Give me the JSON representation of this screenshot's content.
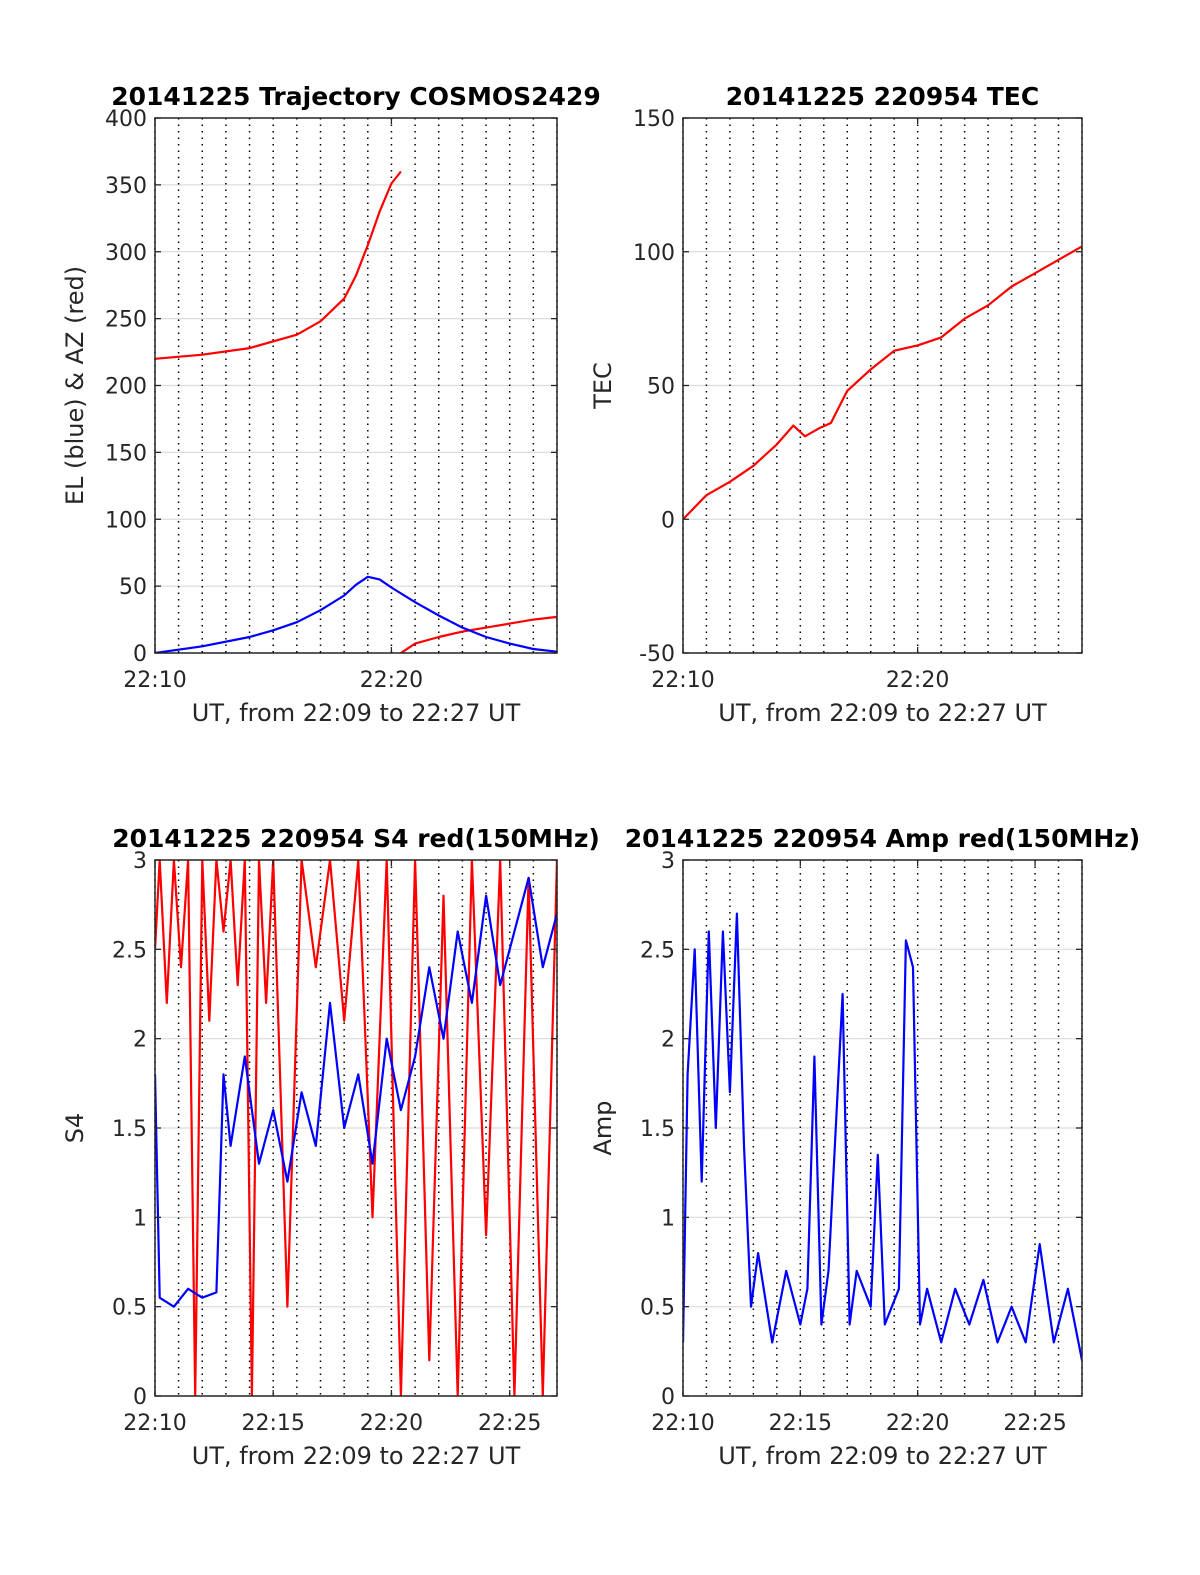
{
  "chart_data": [
    {
      "id": "trajectory",
      "type": "line",
      "title": "20141225 Trajectory COSMOS2429",
      "xlabel": "UT, from 22:09 to 22:27 UT",
      "ylabel": "EL (blue) & AZ (red)",
      "xlim": [
        22.1667,
        22.45
      ],
      "ylim": [
        0,
        400
      ],
      "yticks": [
        0,
        50,
        100,
        150,
        200,
        250,
        300,
        350,
        400
      ],
      "xticks": [
        {
          "value": 22.1667,
          "label": "22:10"
        },
        {
          "value": 22.3333,
          "label": "22:20"
        }
      ],
      "vgrid_minutes_from": 10,
      "vgrid_minutes_to": 27,
      "grid": true,
      "series": [
        {
          "color": "#ff0000",
          "segments": [
            [
              [
                22.1667,
                220
              ],
              [
                22.2,
                223
              ],
              [
                22.2333,
                228
              ],
              [
                22.2667,
                238
              ],
              [
                22.2833,
                248
              ],
              [
                22.3,
                265
              ],
              [
                22.3083,
                282
              ],
              [
                22.3167,
                305
              ],
              [
                22.325,
                330
              ],
              [
                22.3333,
                351
              ],
              [
                22.34,
                360
              ]
            ],
            [
              [
                22.34,
                0
              ],
              [
                22.35,
                7
              ],
              [
                22.3667,
                12
              ],
              [
                22.3833,
                16
              ],
              [
                22.4,
                19
              ],
              [
                22.4167,
                22
              ],
              [
                22.4333,
                25
              ],
              [
                22.45,
                27
              ]
            ]
          ]
        },
        {
          "color": "#0000ff",
          "segments": [
            [
              [
                22.1667,
                0
              ],
              [
                22.2,
                5
              ],
              [
                22.2333,
                12
              ],
              [
                22.25,
                17
              ],
              [
                22.2667,
                23
              ],
              [
                22.2833,
                32
              ],
              [
                22.3,
                43
              ],
              [
                22.3083,
                51
              ],
              [
                22.3167,
                57
              ],
              [
                22.325,
                55
              ],
              [
                22.3333,
                49
              ],
              [
                22.35,
                38
              ],
              [
                22.3667,
                28
              ],
              [
                22.3833,
                19
              ],
              [
                22.4,
                12
              ],
              [
                22.4167,
                7
              ],
              [
                22.4333,
                3
              ],
              [
                22.45,
                1
              ]
            ]
          ]
        }
      ]
    },
    {
      "id": "tec",
      "type": "line",
      "title": "20141225 220954 TEC",
      "xlabel": "UT, from 22:09 to 22:27 UT",
      "ylabel": "TEC",
      "xlim": [
        22.1667,
        22.45
      ],
      "ylim": [
        -50,
        150
      ],
      "yticks": [
        -50,
        0,
        50,
        100,
        150
      ],
      "xticks": [
        {
          "value": 22.1667,
          "label": "22:10"
        },
        {
          "value": 22.3333,
          "label": "22:20"
        }
      ],
      "vgrid_minutes_from": 10,
      "vgrid_minutes_to": 27,
      "grid": true,
      "series": [
        {
          "color": "#ff0000",
          "segments": [
            [
              [
                22.1667,
                0
              ],
              [
                22.1833,
                9
              ],
              [
                22.2,
                14
              ],
              [
                22.2167,
                20
              ],
              [
                22.2333,
                28
              ],
              [
                22.245,
                35
              ],
              [
                22.2533,
                31
              ],
              [
                22.2633,
                34
              ],
              [
                22.2717,
                36
              ],
              [
                22.2833,
                48
              ],
              [
                22.3,
                56
              ],
              [
                22.3167,
                63
              ],
              [
                22.3333,
                65
              ],
              [
                22.35,
                68
              ],
              [
                22.3667,
                75
              ],
              [
                22.3833,
                80
              ],
              [
                22.4,
                87
              ],
              [
                22.4167,
                92
              ],
              [
                22.4333,
                97
              ],
              [
                22.45,
                102
              ]
            ]
          ]
        }
      ]
    },
    {
      "id": "s4",
      "type": "line",
      "title": "20141225 220954 S4 red(150MHz)",
      "xlabel": "UT, from 22:09 to 22:27 UT",
      "ylabel": "S4",
      "xlim": [
        22.1667,
        22.45
      ],
      "ylim": [
        0,
        3
      ],
      "yticks": [
        0,
        0.5,
        1,
        1.5,
        2,
        2.5,
        3
      ],
      "xticks": [
        {
          "value": 22.1667,
          "label": "22:10"
        },
        {
          "value": 22.25,
          "label": "22:15"
        },
        {
          "value": 22.3333,
          "label": "22:20"
        },
        {
          "value": 22.4167,
          "label": "22:25"
        }
      ],
      "vgrid_minutes_from": 10,
      "vgrid_minutes_to": 27,
      "grid": true,
      "series": [
        {
          "color": "#ff0000",
          "segments": [
            [
              [
                22.1667,
                2.5
              ],
              [
                22.17,
                3
              ],
              [
                22.175,
                2.2
              ],
              [
                22.18,
                3
              ],
              [
                22.185,
                2.4
              ],
              [
                22.19,
                3
              ],
              [
                22.195,
                0
              ],
              [
                22.2,
                3
              ],
              [
                22.205,
                2.1
              ],
              [
                22.21,
                3
              ],
              [
                22.215,
                2.6
              ],
              [
                22.22,
                3
              ],
              [
                22.225,
                2.3
              ],
              [
                22.23,
                3
              ],
              [
                22.235,
                0
              ],
              [
                22.24,
                3
              ],
              [
                22.245,
                2.2
              ],
              [
                22.25,
                3
              ],
              [
                22.26,
                0.5
              ],
              [
                22.27,
                3
              ],
              [
                22.28,
                2.4
              ],
              [
                22.29,
                3
              ],
              [
                22.3,
                2.1
              ],
              [
                22.31,
                3
              ],
              [
                22.32,
                1.0
              ],
              [
                22.33,
                3
              ],
              [
                22.34,
                0
              ],
              [
                22.35,
                3
              ],
              [
                22.36,
                0.2
              ],
              [
                22.37,
                2.8
              ],
              [
                22.38,
                0
              ],
              [
                22.39,
                3
              ],
              [
                22.4,
                0.9
              ],
              [
                22.41,
                3
              ],
              [
                22.42,
                0
              ],
              [
                22.43,
                2.9
              ],
              [
                22.44,
                0
              ],
              [
                22.45,
                3
              ]
            ]
          ]
        },
        {
          "color": "#0000ff",
          "segments": [
            [
              [
                22.1667,
                1.8
              ],
              [
                22.17,
                0.55
              ],
              [
                22.18,
                0.5
              ],
              [
                22.19,
                0.6
              ],
              [
                22.2,
                0.55
              ],
              [
                22.21,
                0.58
              ],
              [
                22.215,
                1.8
              ],
              [
                22.22,
                1.4
              ],
              [
                22.23,
                1.9
              ],
              [
                22.24,
                1.3
              ],
              [
                22.25,
                1.6
              ],
              [
                22.26,
                1.2
              ],
              [
                22.27,
                1.7
              ],
              [
                22.28,
                1.4
              ],
              [
                22.29,
                2.2
              ],
              [
                22.3,
                1.5
              ],
              [
                22.31,
                1.8
              ],
              [
                22.32,
                1.3
              ],
              [
                22.33,
                2.0
              ],
              [
                22.34,
                1.6
              ],
              [
                22.35,
                1.9
              ],
              [
                22.36,
                2.4
              ],
              [
                22.37,
                2.0
              ],
              [
                22.38,
                2.6
              ],
              [
                22.39,
                2.2
              ],
              [
                22.4,
                2.8
              ],
              [
                22.41,
                2.3
              ],
              [
                22.42,
                2.6
              ],
              [
                22.43,
                2.9
              ],
              [
                22.44,
                2.4
              ],
              [
                22.45,
                2.7
              ]
            ]
          ]
        }
      ]
    },
    {
      "id": "amp",
      "type": "line",
      "title": "20141225 220954 Amp red(150MHz)",
      "xlabel": "UT, from 22:09 to 22:27 UT",
      "ylabel": "Amp",
      "xlim": [
        22.1667,
        22.45
      ],
      "ylim": [
        0,
        3
      ],
      "yticks": [
        0,
        0.5,
        1,
        1.5,
        2,
        2.5,
        3
      ],
      "xticks": [
        {
          "value": 22.1667,
          "label": "22:10"
        },
        {
          "value": 22.25,
          "label": "22:15"
        },
        {
          "value": 22.3333,
          "label": "22:20"
        },
        {
          "value": 22.4167,
          "label": "22:25"
        }
      ],
      "vgrid_minutes_from": 10,
      "vgrid_minutes_to": 27,
      "grid": true,
      "series": [
        {
          "color": "#0000ff",
          "segments": [
            [
              [
                22.1667,
                0.3
              ],
              [
                22.17,
                1.8
              ],
              [
                22.175,
                2.5
              ],
              [
                22.18,
                1.2
              ],
              [
                22.185,
                2.6
              ],
              [
                22.19,
                1.5
              ],
              [
                22.195,
                2.6
              ],
              [
                22.2,
                1.7
              ],
              [
                22.205,
                2.7
              ],
              [
                22.21,
                1.4
              ],
              [
                22.215,
                0.5
              ],
              [
                22.22,
                0.8
              ],
              [
                22.23,
                0.3
              ],
              [
                22.24,
                0.7
              ],
              [
                22.25,
                0.4
              ],
              [
                22.255,
                0.6
              ],
              [
                22.26,
                1.9
              ],
              [
                22.265,
                0.4
              ],
              [
                22.27,
                0.7
              ],
              [
                22.28,
                2.25
              ],
              [
                22.285,
                0.4
              ],
              [
                22.29,
                0.7
              ],
              [
                22.3,
                0.5
              ],
              [
                22.305,
                1.35
              ],
              [
                22.31,
                0.4
              ],
              [
                22.32,
                0.6
              ],
              [
                22.325,
                2.55
              ],
              [
                22.33,
                2.4
              ],
              [
                22.335,
                0.4
              ],
              [
                22.34,
                0.6
              ],
              [
                22.35,
                0.3
              ],
              [
                22.36,
                0.6
              ],
              [
                22.37,
                0.4
              ],
              [
                22.38,
                0.65
              ],
              [
                22.39,
                0.3
              ],
              [
                22.4,
                0.5
              ],
              [
                22.41,
                0.3
              ],
              [
                22.42,
                0.85
              ],
              [
                22.43,
                0.3
              ],
              [
                22.44,
                0.6
              ],
              [
                22.45,
                0.2
              ]
            ]
          ]
        }
      ]
    }
  ]
}
